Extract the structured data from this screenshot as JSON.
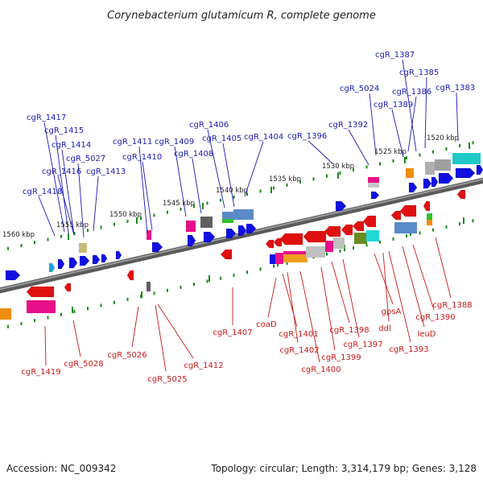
{
  "title": "Corynebacterium glutamicum R, complete genome",
  "footer": {
    "accession": "Accession: NC_009342",
    "summary": "Topology: circular; Length: 3,314,179 bp; Genes: 3,128"
  },
  "colors": {
    "forward_gene": "#1010e0",
    "forward_label": "#1a1ab0",
    "reverse_gene": "#e01010",
    "reverse_label": "#c81818",
    "scale_tick": "#1a8a1a",
    "backbone": "#7a7a7a"
  },
  "kbp_marks": [
    "1560 kbp",
    "1555 kbp",
    "1550 kbp",
    "1545 kbp",
    "1540 kbp",
    "1535 kbp",
    "1530 kbp",
    "1525 kbp",
    "1520 kbp"
  ],
  "forward_labels": [
    "cgR_1417",
    "cgR_1415",
    "cgR_1414",
    "cgR_5027",
    "cgR_1416",
    "cgR_1413",
    "cgR_1418",
    "cgR_1411",
    "cgR_1410",
    "cgR_1409",
    "cgR_1408",
    "cgR_1406",
    "cgR_1405",
    "cgR_1404",
    "cgR_1396",
    "cgR_5024",
    "cgR_1392",
    "cgR_1387",
    "cgR_1385",
    "cgR_1386",
    "cgR_1389",
    "cgR_1383"
  ],
  "reverse_labels": [
    "cgR_1419",
    "cgR_5028",
    "cgR_5026",
    "cgR_5025",
    "cgR_1412",
    "cgR_1407",
    "coaD",
    "cgR_1401",
    "cgR_1402",
    "cgR_1400",
    "cgR_1399",
    "cgR_1398",
    "cgR_1397",
    "gpsA",
    "ddl",
    "cgR_1393",
    "leuD",
    "cgR_1390",
    "cgR_1388"
  ]
}
